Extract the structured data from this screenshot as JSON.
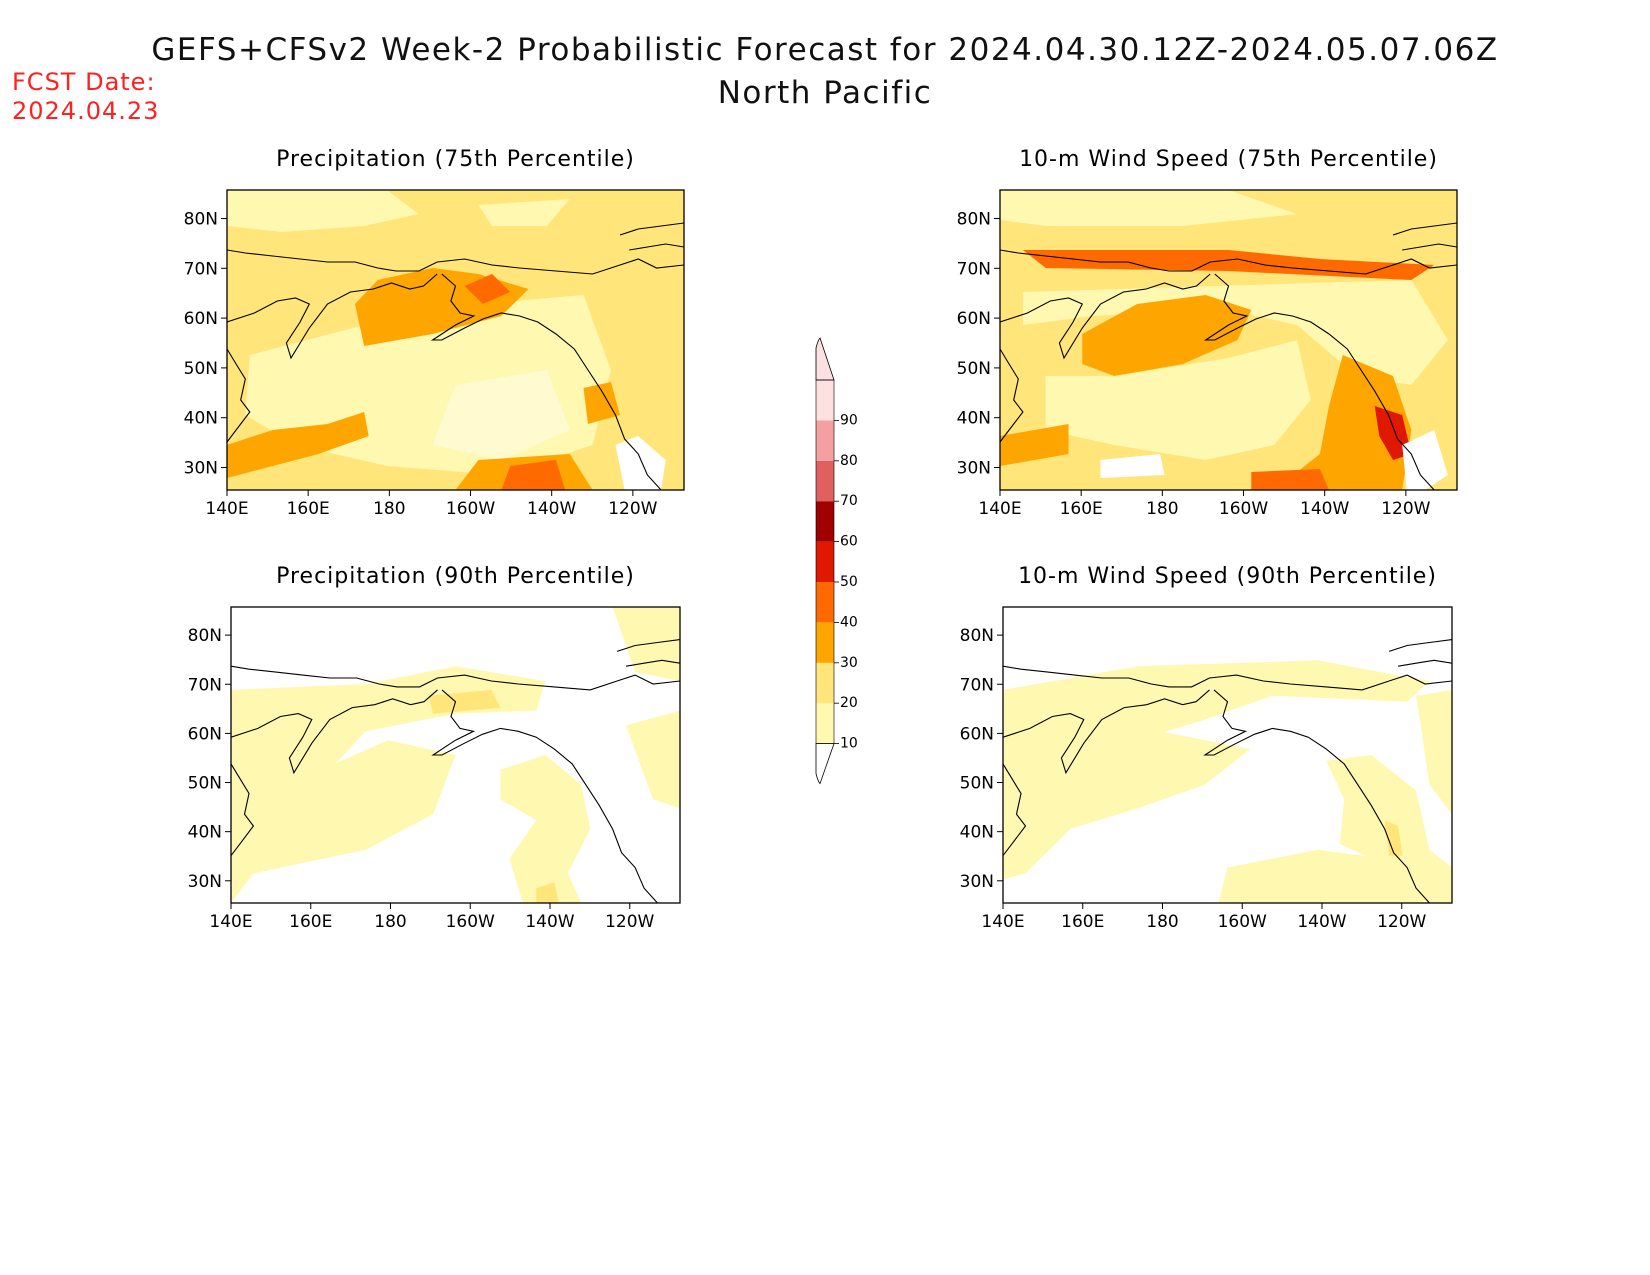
{
  "header": {
    "title": "GEFS+CFSv2 Week-2 Probabilistic Forecast for 2024.04.30.12Z-2024.05.07.06Z",
    "subtitle": "North Pacific",
    "fcst_label": "FCST Date:",
    "fcst_date": "2024.04.23"
  },
  "panels": [
    {
      "id": "precip-75",
      "title": "Precipitation (75th Percentile)"
    },
    {
      "id": "wind-75",
      "title": "10-m Wind Speed (75th Percentile)"
    },
    {
      "id": "precip-90",
      "title": "Precipitation (90th Percentile)"
    },
    {
      "id": "wind-90",
      "title": "10-m Wind Speed (90th Percentile)"
    }
  ],
  "axes": {
    "lon_labels": [
      "140E",
      "160E",
      "180",
      "160W",
      "140W",
      "120W"
    ],
    "lat_labels": [
      "30N",
      "40N",
      "50N",
      "60N",
      "70N",
      "80N"
    ]
  },
  "colorbar": {
    "levels": [
      "10",
      "20",
      "30",
      "40",
      "50",
      "60",
      "70",
      "80",
      "90"
    ],
    "colors": [
      "#fff8b0",
      "#ffe57a",
      "#ffa500",
      "#ff6a00",
      "#e01800",
      "#a00000",
      "#e06060",
      "#f4a0a0",
      "#fde0e0"
    ]
  }
}
